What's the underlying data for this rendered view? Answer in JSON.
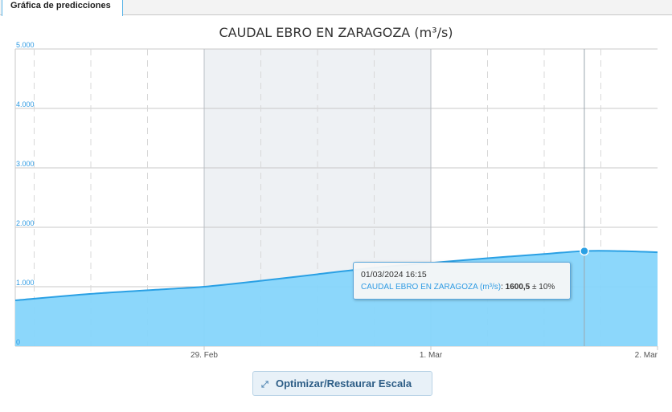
{
  "tab": {
    "label": "Gráfica de predicciones"
  },
  "chart_data": {
    "type": "area",
    "title": "CAUDAL EBRO EN ZARAGOZA (m³/s)",
    "xlabel": "",
    "ylabel": "",
    "ylim": [
      0,
      5000
    ],
    "y_ticks": [
      "0",
      "1.000",
      "2.000",
      "3.000",
      "4.000",
      "5.000"
    ],
    "x_ticks": [
      "29. Feb",
      "1. Mar",
      "2. Mar"
    ],
    "xlim_hours": [
      28,
      96
    ],
    "shaded_band_hours": [
      48,
      72
    ],
    "series": [
      {
        "values": [
          {
            "hour": 28,
            "y": 770
          },
          {
            "hour": 36,
            "y": 880
          },
          {
            "hour": 44,
            "y": 960
          },
          {
            "hour": 48,
            "y": 1000
          },
          {
            "hour": 54,
            "y": 1100
          },
          {
            "hour": 60,
            "y": 1210
          },
          {
            "hour": 66,
            "y": 1320
          },
          {
            "hour": 72,
            "y": 1400
          },
          {
            "hour": 78,
            "y": 1480
          },
          {
            "hour": 84,
            "y": 1550
          },
          {
            "hour": 88.25,
            "y": 1600.5
          },
          {
            "hour": 92,
            "y": 1600
          },
          {
            "hour": 96,
            "y": 1580
          }
        ]
      }
    ],
    "grid": true,
    "highlighted_point": {
      "hour": 88.25,
      "y": 1600.5
    },
    "colors": {
      "area": "#86d5fb",
      "line": "#2aa0e4",
      "band": "#eef1f4",
      "grid": "#c8c8c8",
      "axis_labels": "#2f9be3"
    }
  },
  "tooltip": {
    "date": "01/03/2024 16:15",
    "series_label": "CAUDAL EBRO EN ZARAGOZA (m³/s)",
    "separator": ":",
    "value": "1600,5",
    "uncertainty": "± 10%"
  },
  "button": {
    "label": "Optimizar/Restaurar Escala",
    "icon": "expand-arrows-icon"
  }
}
